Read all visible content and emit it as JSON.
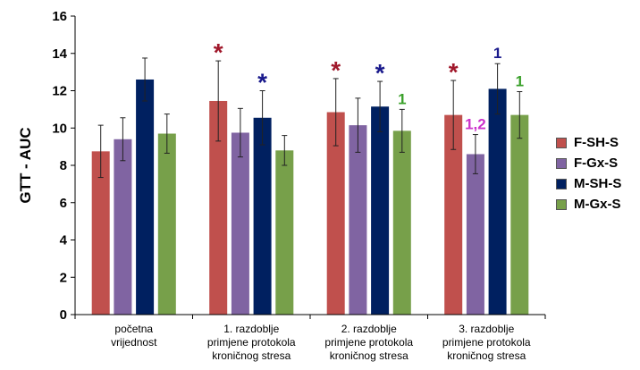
{
  "chart_data": {
    "type": "bar",
    "ylabel": "GTT - AUC",
    "xlabel": "",
    "ylim": [
      0,
      16
    ],
    "yticks": [
      0,
      2,
      4,
      6,
      8,
      10,
      12,
      14,
      16
    ],
    "grid": false,
    "legend_position": "right",
    "categories": [
      [
        "početna",
        "vrijednost"
      ],
      [
        "1. razdoblje",
        "primjene protokola",
        "kroničnog stresa"
      ],
      [
        "2. razdoblje",
        "primjene protokola",
        "kroničnog stresa"
      ],
      [
        "3. razdoblje",
        "primjene protokola",
        "kroničnog stresa"
      ]
    ],
    "series": [
      {
        "name": "F-SH-S",
        "color": "#c0504d",
        "values": [
          8.75,
          11.45,
          10.85,
          10.7
        ],
        "errors": [
          1.4,
          2.15,
          1.8,
          1.85
        ]
      },
      {
        "name": "F-Gx-S",
        "color": "#8064a2",
        "values": [
          9.4,
          9.75,
          10.15,
          8.6
        ],
        "errors": [
          1.15,
          1.3,
          1.45,
          1.05
        ]
      },
      {
        "name": "M-SH-S",
        "color": "#002060",
        "values": [
          12.6,
          10.55,
          11.15,
          12.1
        ],
        "errors": [
          1.15,
          1.45,
          1.35,
          1.35
        ]
      },
      {
        "name": "M-Gx-S",
        "color": "#77a04a",
        "values": [
          9.7,
          8.8,
          9.85,
          10.7
        ],
        "errors": [
          1.05,
          0.8,
          1.15,
          1.25
        ]
      }
    ],
    "annotations": [
      {
        "category": 1,
        "series": 0,
        "text": "*",
        "color": "#a0182b"
      },
      {
        "category": 1,
        "series": 2,
        "text": "*",
        "color": "#1a1a8c"
      },
      {
        "category": 2,
        "series": 0,
        "text": "*",
        "color": "#a0182b"
      },
      {
        "category": 2,
        "series": 2,
        "text": "*",
        "color": "#1a1a8c"
      },
      {
        "category": 2,
        "series": 3,
        "text": "1",
        "color": "#3aa02a"
      },
      {
        "category": 3,
        "series": 0,
        "text": "*",
        "color": "#a0182b"
      },
      {
        "category": 3,
        "series": 1,
        "text": "1,2",
        "color": "#cc33cc"
      },
      {
        "category": 3,
        "series": 2,
        "text": "1",
        "color": "#1a1a8c"
      },
      {
        "category": 3,
        "series": 3,
        "text": "1",
        "color": "#3aa02a"
      }
    ]
  }
}
